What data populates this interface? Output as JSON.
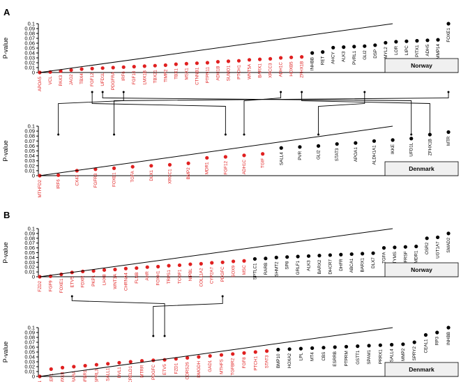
{
  "chart_data": {
    "type": "scatter",
    "ylabel": "P-value",
    "y_ticks": [
      "0",
      "0.01",
      "0.02",
      "0.03",
      "0.04",
      "0.05",
      "0.06",
      "0.07",
      "0.08",
      "0.09",
      "0.1"
    ],
    "ylim": [
      0,
      0.1
    ],
    "colors": {
      "significant": "#e02020",
      "nonsignificant": "#000000",
      "line": "#000000"
    },
    "panels": [
      {
        "label": "A",
        "top": {
          "country": "Norway",
          "genes": [
            {
              "g": "APOA5",
              "p": 0.0,
              "s": true
            },
            {
              "g": "VCL",
              "p": 0.001,
              "s": true
            },
            {
              "g": "PAX3",
              "p": 0.003,
              "s": true
            },
            {
              "g": "JAG2",
              "p": 0.005,
              "s": true
            },
            {
              "g": "TBX4",
              "p": 0.007,
              "s": true
            },
            {
              "g": "FGF12",
              "p": 0.008,
              "s": true
            },
            {
              "g": "UFD1L",
              "p": 0.009,
              "s": true
            },
            {
              "g": "PDGFRA",
              "p": 0.01,
              "s": true
            },
            {
              "g": "IRF6",
              "p": 0.011,
              "s": true
            },
            {
              "g": "FGF10",
              "p": 0.012,
              "s": true
            },
            {
              "g": "LMX1B",
              "p": 0.013,
              "s": true
            },
            {
              "g": "TBX21",
              "p": 0.014,
              "s": true
            },
            {
              "g": "TIMP2",
              "p": 0.015,
              "s": true
            },
            {
              "g": "TBX1",
              "p": 0.017,
              "s": true
            },
            {
              "g": "MSX1",
              "p": 0.018,
              "s": true
            },
            {
              "g": "CTNNB1",
              "p": 0.019,
              "s": true
            },
            {
              "g": "PTPN11",
              "p": 0.02,
              "s": true
            },
            {
              "g": "ADH1B",
              "p": 0.022,
              "s": true
            },
            {
              "g": "SUMO1",
              "p": 0.023,
              "s": true
            },
            {
              "g": "PTCH1",
              "p": 0.024,
              "s": true
            },
            {
              "g": "WNT5A",
              "p": 0.026,
              "s": true
            },
            {
              "g": "BARX1",
              "p": 0.027,
              "s": true
            },
            {
              "g": "XRCC3",
              "p": 0.028,
              "s": true
            },
            {
              "g": "ADH1C",
              "p": 0.03,
              "s": true
            },
            {
              "g": "HOXB5",
              "p": 0.031,
              "s": true
            },
            {
              "g": "ZFHX1B",
              "p": 0.032,
              "s": true
            },
            {
              "g": "INHBB",
              "p": 0.04,
              "s": false
            },
            {
              "g": "RET",
              "p": 0.042,
              "s": false
            },
            {
              "g": "AHCY",
              "p": 0.051,
              "s": false
            },
            {
              "g": "ALK3",
              "p": 0.052,
              "s": false
            },
            {
              "g": "PVRL1",
              "p": 0.053,
              "s": false
            },
            {
              "g": "GLI2",
              "p": 0.054,
              "s": false
            },
            {
              "g": "DSP",
              "p": 0.056,
              "s": false
            },
            {
              "g": "MYL2",
              "p": 0.061,
              "s": false
            },
            {
              "g": "LOR",
              "p": 0.063,
              "s": false
            },
            {
              "g": "LIPC",
              "p": 0.064,
              "s": false
            },
            {
              "g": "PITX1",
              "p": 0.065,
              "s": false
            },
            {
              "g": "ADH5",
              "p": 0.066,
              "s": false
            },
            {
              "g": "MMP14",
              "p": 0.067,
              "s": false
            },
            {
              "g": "FOXE1",
              "p": 0.1,
              "s": false
            }
          ]
        },
        "bottom": {
          "country": "Denmark",
          "genes": [
            {
              "g": "MTHFD2",
              "p": 0.0,
              "s": true
            },
            {
              "g": "IRF6",
              "p": 0.001,
              "s": true
            },
            {
              "g": "CX43",
              "p": 0.01,
              "s": true
            },
            {
              "g": "FGFR3",
              "p": 0.013,
              "s": true
            },
            {
              "g": "FOXE1",
              "p": 0.015,
              "s": true
            },
            {
              "g": "TGFA",
              "p": 0.018,
              "s": true
            },
            {
              "g": "DLX1",
              "p": 0.02,
              "s": true
            },
            {
              "g": "XRCC1",
              "p": 0.022,
              "s": true
            },
            {
              "g": "BMP2",
              "p": 0.025,
              "s": true
            },
            {
              "g": "MDR1",
              "p": 0.036,
              "s": true
            },
            {
              "g": "FGF12",
              "p": 0.038,
              "s": true
            },
            {
              "g": "ADH1C",
              "p": 0.041,
              "s": true
            },
            {
              "g": "TGIF",
              "p": 0.044,
              "s": true
            },
            {
              "g": "SALL4",
              "p": 0.056,
              "s": false
            },
            {
              "g": "PVR",
              "p": 0.058,
              "s": false
            },
            {
              "g": "GLI2",
              "p": 0.06,
              "s": false
            },
            {
              "g": "STAT3",
              "p": 0.064,
              "s": false
            },
            {
              "g": "APOA1",
              "p": 0.066,
              "s": false
            },
            {
              "g": "ALDH1A1",
              "p": 0.07,
              "s": false
            },
            {
              "g": "IKKE",
              "p": 0.072,
              "s": false
            },
            {
              "g": "UFD1L",
              "p": 0.075,
              "s": false
            },
            {
              "g": "ZFHX1B",
              "p": 0.083,
              "s": false
            },
            {
              "g": "MTR",
              "p": 0.088,
              "s": false
            }
          ]
        },
        "links": [
          [
            "UFD1L",
            "UFD1L"
          ],
          [
            "IRF6",
            "IRF6"
          ],
          [
            "FGF12",
            "FGF12"
          ],
          [
            "ADH1C",
            "ADH1C"
          ],
          [
            "ZFHX1B",
            "ZFHX1B"
          ],
          [
            "GLI2",
            "GLI2"
          ],
          [
            "FOXE1",
            "FOXE1"
          ]
        ]
      },
      {
        "label": "B",
        "top": {
          "country": "Norway",
          "genes": [
            {
              "g": "FZD2",
              "p": 0.0,
              "s": true
            },
            {
              "g": "FGF9",
              "p": 0.001,
              "s": true
            },
            {
              "g": "FOXE1",
              "p": 0.005,
              "s": true
            },
            {
              "g": "ETV5",
              "p": 0.009,
              "s": true
            },
            {
              "g": "FDXR",
              "p": 0.011,
              "s": true
            },
            {
              "g": "PKP1",
              "p": 0.012,
              "s": true
            },
            {
              "g": "LHX8",
              "p": 0.014,
              "s": true
            },
            {
              "g": "WNT3A",
              "p": 0.015,
              "s": true
            },
            {
              "g": "CHRNA4",
              "p": 0.017,
              "s": true
            },
            {
              "g": "FLNB",
              "p": 0.018,
              "s": true
            },
            {
              "g": "AHR",
              "p": 0.02,
              "s": true
            },
            {
              "g": "FOXH1",
              "p": 0.021,
              "s": true
            },
            {
              "g": "TRPS1",
              "p": 0.023,
              "s": true
            },
            {
              "g": "TCOF1",
              "p": 0.024,
              "s": true
            },
            {
              "g": "NIPBL",
              "p": 0.026,
              "s": true
            },
            {
              "g": "COL11A2",
              "p": 0.027,
              "s": true
            },
            {
              "g": "CYP2A7",
              "p": 0.029,
              "s": true
            },
            {
              "g": "PDGFC",
              "p": 0.03,
              "s": true
            },
            {
              "g": "SOX9",
              "p": 0.032,
              "s": true
            },
            {
              "g": "MSC",
              "p": 0.033,
              "s": true
            },
            {
              "g": "SPTLC1",
              "p": 0.037,
              "s": false
            },
            {
              "g": "RARB",
              "p": 0.038,
              "s": false
            },
            {
              "g": "SHMT2",
              "p": 0.04,
              "s": false
            },
            {
              "g": "SP8",
              "p": 0.041,
              "s": false
            },
            {
              "g": "GRLF1",
              "p": 0.042,
              "s": false
            },
            {
              "g": "ALK3",
              "p": 0.043,
              "s": false
            },
            {
              "g": "BARX2",
              "p": 0.044,
              "s": false
            },
            {
              "g": "DHCR7",
              "p": 0.045,
              "s": false
            },
            {
              "g": "DHFR",
              "p": 0.046,
              "s": false
            },
            {
              "g": "ABCA1",
              "p": 0.047,
              "s": false
            },
            {
              "g": "BARX1",
              "p": 0.048,
              "s": false
            },
            {
              "g": "DLX7",
              "p": 0.049,
              "s": false
            },
            {
              "g": "TGFA",
              "p": 0.06,
              "s": false
            },
            {
              "g": "TYMS",
              "p": 0.061,
              "s": false
            },
            {
              "g": "TNFRSF",
              "p": 0.062,
              "s": false
            },
            {
              "g": "MDR1",
              "p": 0.063,
              "s": false
            },
            {
              "g": "OSR2",
              "p": 0.08,
              "s": false
            },
            {
              "g": "UGT1A7",
              "p": 0.082,
              "s": false
            },
            {
              "g": "SMAD2",
              "p": 0.09,
              "s": false
            }
          ]
        },
        "bottom": {
          "country": "Denmark",
          "genes": [
            {
              "g": "SARA1",
              "p": 0.0,
              "s": true
            },
            {
              "g": "LEF1",
              "p": 0.015,
              "s": true
            },
            {
              "g": "LMX1B",
              "p": 0.018,
              "s": true
            },
            {
              "g": "RARA",
              "p": 0.02,
              "s": true
            },
            {
              "g": "TGFBR1",
              "p": 0.022,
              "s": true
            },
            {
              "g": "SPRL3",
              "p": 0.024,
              "s": true
            },
            {
              "g": "SALL1",
              "p": 0.026,
              "s": true
            },
            {
              "g": "DVL1",
              "p": 0.028,
              "s": true
            },
            {
              "g": "CRELD1",
              "p": 0.03,
              "s": true
            },
            {
              "g": "MTRR",
              "p": 0.032,
              "s": true
            },
            {
              "g": "PDGFC",
              "p": 0.033,
              "s": true
            },
            {
              "g": "ETV5",
              "p": 0.034,
              "s": true
            },
            {
              "g": "FZD1",
              "p": 0.036,
              "s": true
            },
            {
              "g": "CORS26",
              "p": 0.038,
              "s": true
            },
            {
              "g": "DMGDH",
              "p": 0.04,
              "s": true
            },
            {
              "g": "GAD1",
              "p": 0.042,
              "s": true
            },
            {
              "g": "MTHFS",
              "p": 0.044,
              "s": true
            },
            {
              "g": "TGFBR2",
              "p": 0.046,
              "s": true
            },
            {
              "g": "FGF8",
              "p": 0.048,
              "s": true
            },
            {
              "g": "PTCH1",
              "p": 0.05,
              "s": true
            },
            {
              "g": "STAT3",
              "p": 0.052,
              "s": true
            },
            {
              "g": "BMP10",
              "p": 0.055,
              "s": false
            },
            {
              "g": "HOXA2",
              "p": 0.056,
              "s": false
            },
            {
              "g": "LPL",
              "p": 0.057,
              "s": false
            },
            {
              "g": "MT4",
              "p": 0.058,
              "s": false
            },
            {
              "g": "CBS",
              "p": 0.059,
              "s": false
            },
            {
              "g": "ESRRB",
              "p": 0.06,
              "s": false
            },
            {
              "g": "PTPRM",
              "p": 0.061,
              "s": false
            },
            {
              "g": "GSTT1",
              "p": 0.062,
              "s": false
            },
            {
              "g": "SPAM1",
              "p": 0.063,
              "s": false
            },
            {
              "g": "PRRX1",
              "p": 0.064,
              "s": false
            },
            {
              "g": "SALL4",
              "p": 0.065,
              "s": false
            },
            {
              "g": "MMP2",
              "p": 0.066,
              "s": false
            },
            {
              "g": "SPRY2",
              "p": 0.07,
              "s": false
            },
            {
              "g": "CEAL1",
              "p": 0.085,
              "s": false
            },
            {
              "g": "RP3",
              "p": 0.09,
              "s": false
            },
            {
              "g": "INHBB",
              "p": 0.1,
              "s": false
            }
          ]
        },
        "links": [
          [
            "ETV5",
            "ETV5"
          ],
          [
            "PDGFC",
            "PDGFC"
          ]
        ]
      }
    ]
  }
}
